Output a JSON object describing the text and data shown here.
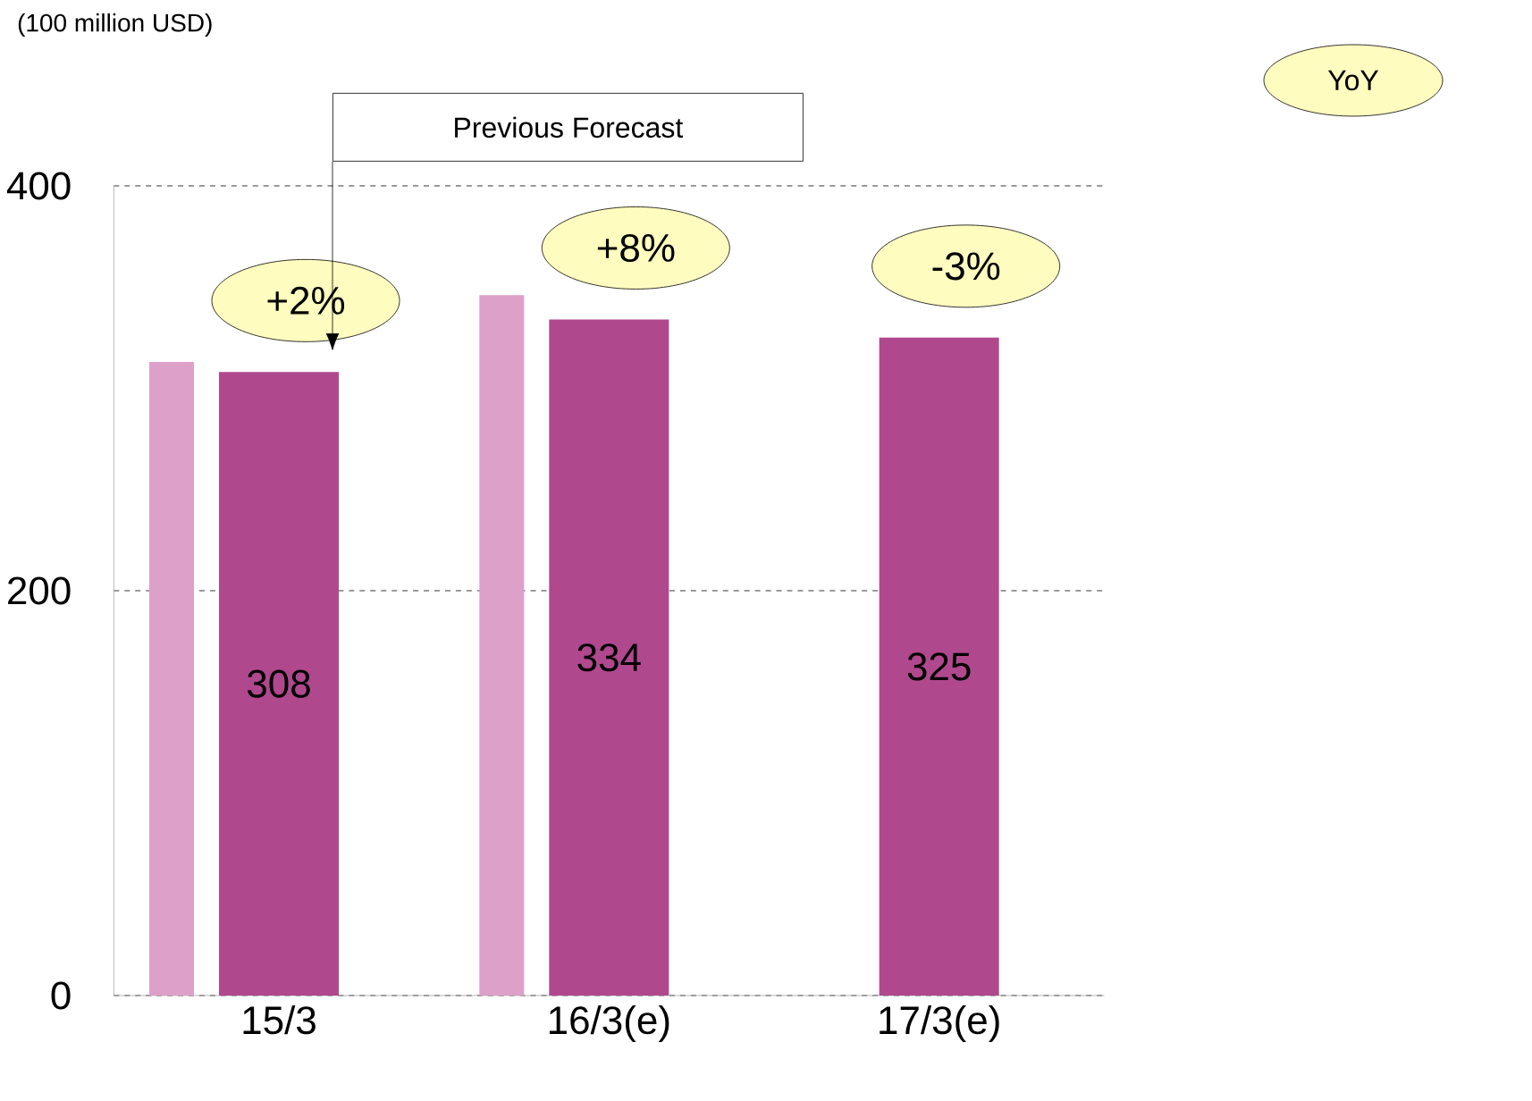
{
  "chart_data": {
    "type": "bar",
    "categories": [
      "15/3",
      "16/3(e)",
      "17/3(e)"
    ],
    "series": [
      {
        "name": "Previous Forecast",
        "color": "#dda0c8",
        "values": [
          313,
          346,
          null
        ]
      },
      {
        "color": "#b0488e",
        "values": [
          308,
          334,
          325
        ],
        "value_labels": [
          "308",
          "334",
          "325"
        ]
      }
    ],
    "ylim": [
      0,
      400
    ],
    "yticks": [
      0,
      200,
      400
    ],
    "grid": "y",
    "annotations": [
      "+2%",
      "+8%",
      "-3%",
      "YoY",
      "(100 million USD)"
    ]
  }
}
